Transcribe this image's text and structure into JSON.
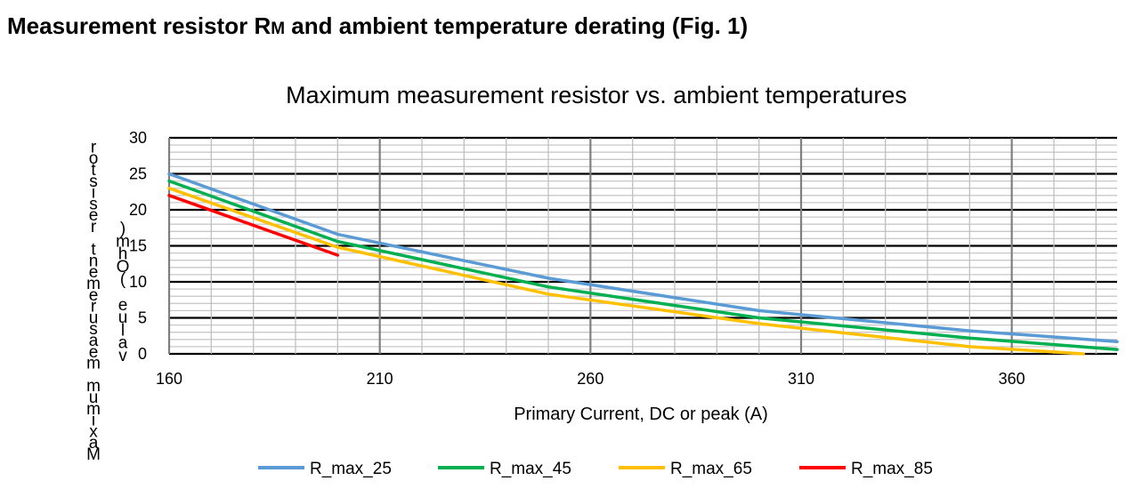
{
  "page": {
    "heading_pre": "Measurement resistor R",
    "heading_sub": "M",
    "heading_post": " and ambient temperature derating (Fig. 1)"
  },
  "chart_data": {
    "type": "line",
    "title": "Maximum measurement resistor vs. ambient temperatures",
    "xlabel": "Primary Current, DC or peak (A)",
    "ylabel": "Maximum measurement resistor value (Ohm)",
    "ylabel_left_column": "Maximum measurement resistor",
    "ylabel_right_column": "value (Ohm)",
    "xlim": [
      160,
      385
    ],
    "ylim": [
      0,
      30
    ],
    "x_ticks": [
      160,
      210,
      260,
      310,
      360
    ],
    "y_ticks": [
      0,
      5,
      10,
      15,
      20,
      25,
      30
    ],
    "grid": true,
    "legend_position": "bottom",
    "series": [
      {
        "name": "R_max_25",
        "color": "#5B9BD5",
        "x": [
          160,
          200,
          250,
          300,
          350,
          385
        ],
        "y": [
          25,
          16.6,
          10.5,
          6.0,
          3.2,
          1.7
        ]
      },
      {
        "name": "R_max_45",
        "color": "#00B050",
        "x": [
          160,
          200,
          250,
          300,
          350,
          385
        ],
        "y": [
          24,
          15.6,
          9.3,
          5.0,
          2.2,
          0.6
        ]
      },
      {
        "name": "R_max_65",
        "color": "#FFC000",
        "x": [
          160,
          200,
          250,
          300,
          350,
          377
        ],
        "y": [
          23,
          14.8,
          8.3,
          4.2,
          1.0,
          0
        ]
      },
      {
        "name": "R_max_85",
        "color": "#FF0000",
        "x": [
          160,
          200
        ],
        "y": [
          22,
          13.7
        ]
      }
    ]
  }
}
